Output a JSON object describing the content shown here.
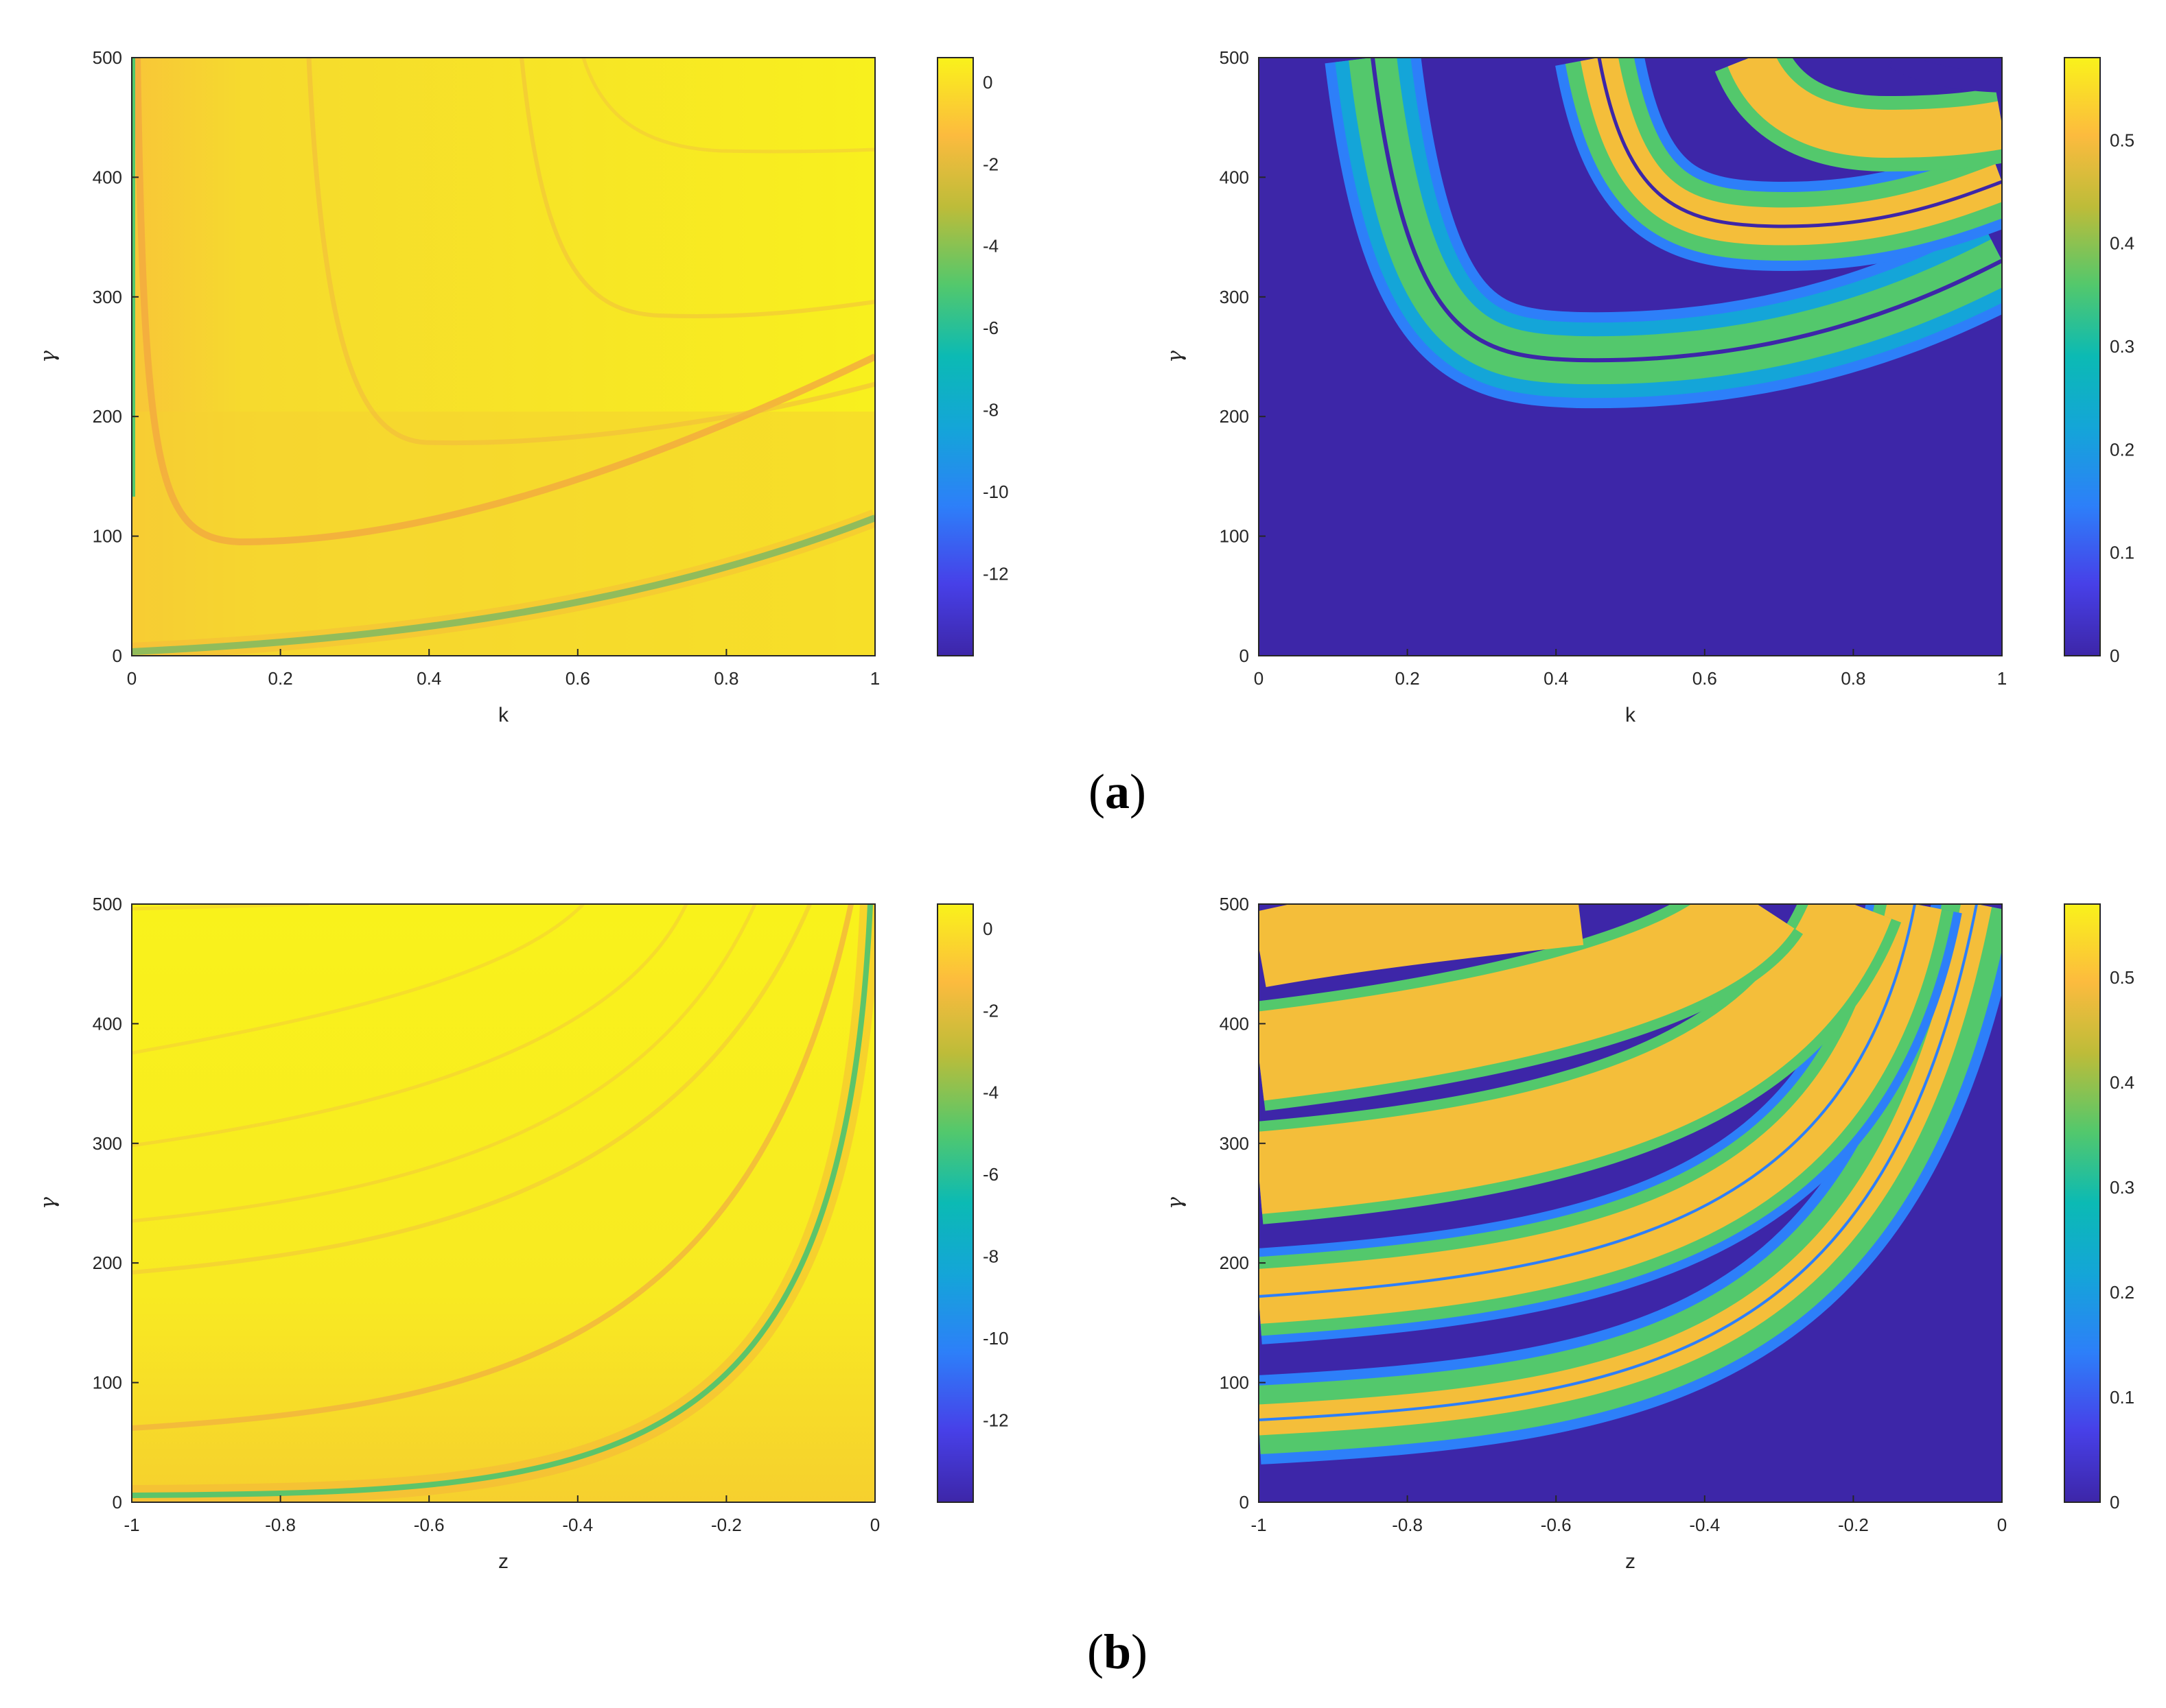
{
  "chart_data": [
    {
      "type": "heatmap",
      "panel": "a-left",
      "xlabel": "k",
      "ylabel": "γ",
      "xlim": [
        0,
        1
      ],
      "ylim": [
        0,
        500
      ],
      "xticks": [
        "0",
        "0.2",
        "0.4",
        "0.6",
        "0.8",
        "1"
      ],
      "yticks": [
        "0",
        "100",
        "200",
        "300",
        "400",
        "500"
      ],
      "clim": [
        -14,
        0.6
      ],
      "colorbar_ticks": [
        "0",
        "-2",
        "-4",
        "-6",
        "-8",
        "-10",
        "-12"
      ],
      "colormap": "parula",
      "background_color": "#F9F21B"
    },
    {
      "type": "heatmap",
      "panel": "a-right",
      "xlabel": "k",
      "ylabel": "γ",
      "xlim": [
        0,
        1
      ],
      "ylim": [
        0,
        500
      ],
      "xticks": [
        "0",
        "0.2",
        "0.4",
        "0.6",
        "0.8",
        "1"
      ],
      "yticks": [
        "0",
        "100",
        "200",
        "300",
        "400",
        "500"
      ],
      "clim": [
        0,
        0.58
      ],
      "colorbar_ticks": [
        "0",
        "0.1",
        "0.2",
        "0.3",
        "0.4",
        "0.5"
      ],
      "colormap": "parula",
      "background_color": "#3D26A8"
    },
    {
      "type": "heatmap",
      "panel": "b-left",
      "xlabel": "z",
      "ylabel": "γ",
      "xlim": [
        -1,
        0
      ],
      "ylim": [
        0,
        500
      ],
      "xticks": [
        "-1",
        "-0.8",
        "-0.6",
        "-0.4",
        "-0.2",
        "0"
      ],
      "yticks": [
        "0",
        "100",
        "200",
        "300",
        "400",
        "500"
      ],
      "clim": [
        -14,
        0.6
      ],
      "colorbar_ticks": [
        "0",
        "-2",
        "-4",
        "-6",
        "-8",
        "-10",
        "-12"
      ],
      "colormap": "parula",
      "background_color": "#F9F21B"
    },
    {
      "type": "heatmap",
      "panel": "b-right",
      "xlabel": "z",
      "ylabel": "γ",
      "xlim": [
        -1,
        0
      ],
      "ylim": [
        0,
        500
      ],
      "xticks": [
        "-1",
        "-0.8",
        "-0.6",
        "-0.4",
        "-0.2",
        "0"
      ],
      "yticks": [
        "0",
        "100",
        "200",
        "300",
        "400",
        "500"
      ],
      "clim": [
        0,
        0.57
      ],
      "colorbar_ticks": [
        "0",
        "0.1",
        "0.2",
        "0.3",
        "0.4",
        "0.5"
      ],
      "colormap": "parula",
      "background_color": "#3D26A8"
    }
  ],
  "captions": {
    "a": {
      "open": "(",
      "letter": "a",
      "close": ")"
    },
    "b": {
      "open": "(",
      "letter": "b",
      "close": ")"
    }
  }
}
